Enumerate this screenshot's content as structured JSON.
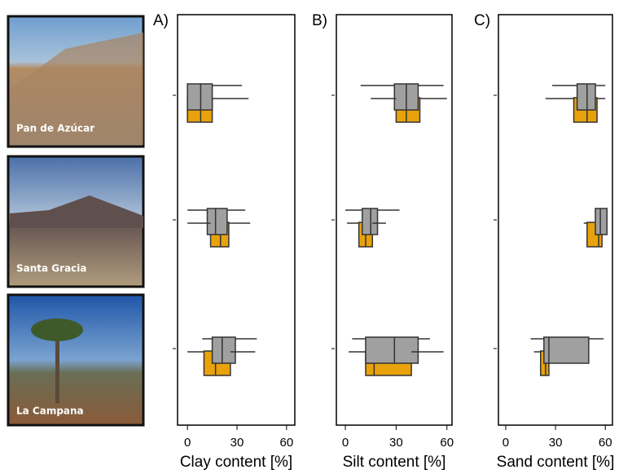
{
  "sites": [
    "Pan de Azúcar",
    "Santa Gracia",
    "La Campana"
  ],
  "chart_data": [
    {
      "type": "boxplot",
      "panel_label": "A)",
      "xlabel": "Clay content [%]",
      "xlim": [
        -6,
        65
      ],
      "xticks": [
        0,
        30,
        60
      ],
      "series": [
        {
          "color": "#a0a0a0",
          "low": [
            0,
            0,
            9
          ],
          "q1": [
            0,
            12,
            15
          ],
          "median": [
            8,
            17,
            21
          ],
          "q3": [
            15,
            24,
            29
          ],
          "high": [
            33,
            35,
            42
          ]
        },
        {
          "color": "#e8a20c",
          "low": [
            0,
            0,
            0
          ],
          "q1": [
            0,
            14,
            10
          ],
          "median": [
            8,
            20,
            17
          ],
          "q3": [
            15,
            25,
            26
          ],
          "high": [
            37,
            38,
            41
          ]
        }
      ]
    },
    {
      "type": "boxplot",
      "panel_label": "B)",
      "xlabel": "Silt content [%]",
      "xlim": [
        -5.3,
        63
      ],
      "xticks": [
        0,
        30,
        60
      ],
      "series": [
        {
          "color": "#a0a0a0",
          "low": [
            9,
            0,
            4
          ],
          "q1": [
            29,
            10,
            12
          ],
          "median": [
            36,
            15,
            29
          ],
          "q3": [
            43,
            19,
            43
          ],
          "high": [
            58,
            32,
            50
          ]
        },
        {
          "color": "#e8a20c",
          "low": [
            15,
            1,
            2
          ],
          "q1": [
            30,
            8,
            12
          ],
          "median": [
            36,
            12,
            17
          ],
          "q3": [
            44,
            16,
            39
          ],
          "high": [
            60,
            24,
            58
          ]
        }
      ]
    },
    {
      "type": "boxplot",
      "panel_label": "C)",
      "xlabel": "Sand content [%]",
      "xlim": [
        -4.4,
        64.3
      ],
      "xticks": [
        0,
        30,
        60
      ],
      "series": [
        {
          "color": "#a0a0a0",
          "low": [
            28,
            54,
            15
          ],
          "q1": [
            43,
            54,
            23
          ],
          "median": [
            49,
            57,
            26
          ],
          "q3": [
            54,
            61,
            50
          ],
          "high": [
            60,
            61,
            59
          ]
        },
        {
          "color": "#e8a20c",
          "low": [
            24,
            47,
            17
          ],
          "q1": [
            41,
            49,
            21
          ],
          "median": [
            49,
            56,
            24
          ],
          "q3": [
            55,
            58,
            26
          ],
          "high": [
            60,
            58,
            26
          ]
        }
      ]
    }
  ]
}
